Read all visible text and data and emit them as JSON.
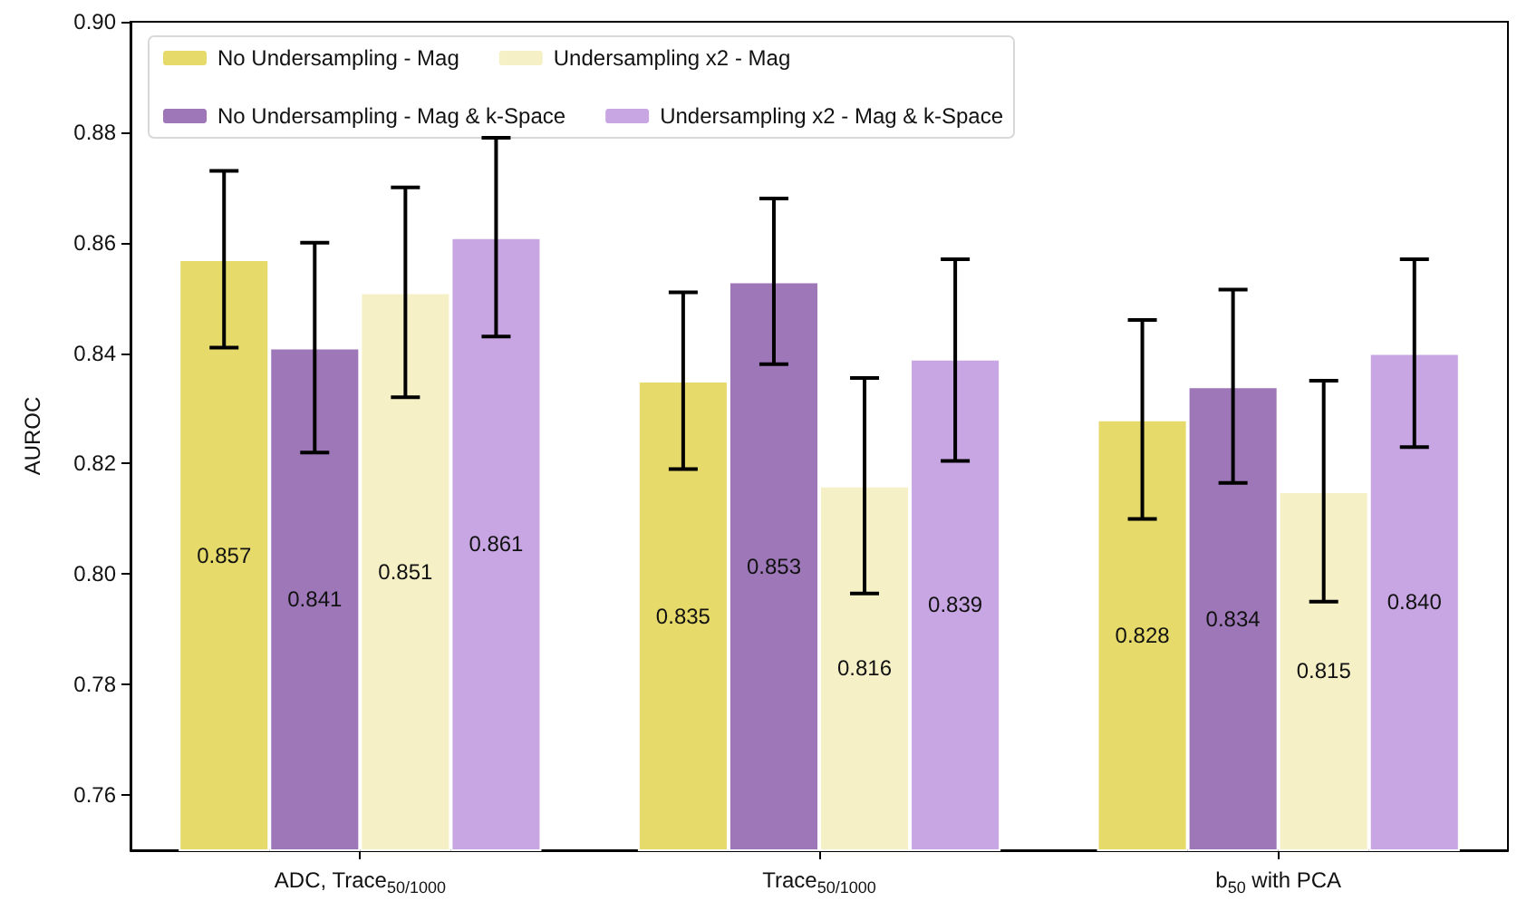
{
  "chart_data": {
    "type": "bar",
    "ylabel": "AUROC",
    "categories": [
      "ADC, Trace$_{50/1000}$",
      "Trace$_{50/1000}$",
      "b$_{50}$ with PCA"
    ],
    "series": [
      {
        "name": "No Undersampling - Mag",
        "color": "#e6da6a",
        "values": [
          0.857,
          0.835,
          0.828
        ],
        "value_labels": [
          "0.857",
          "0.835",
          "0.828"
        ],
        "errors": [
          [
            0.841,
            0.873
          ],
          [
            0.819,
            0.851
          ],
          [
            0.81,
            0.846
          ]
        ]
      },
      {
        "name": "No Undersampling - Mag & k-Space",
        "color": "#9d77b7",
        "values": [
          0.841,
          0.853,
          0.834
        ],
        "value_labels": [
          "0.841",
          "0.853",
          "0.834"
        ],
        "errors": [
          [
            0.822,
            0.86
          ],
          [
            0.838,
            0.868
          ],
          [
            0.8165,
            0.8515
          ]
        ]
      },
      {
        "name": "Undersampling x2 - Mag",
        "color": "#f6f0c6",
        "values": [
          0.851,
          0.816,
          0.815
        ],
        "value_labels": [
          "0.851",
          "0.816",
          "0.815"
        ],
        "errors": [
          [
            0.832,
            0.87
          ],
          [
            0.7965,
            0.8355
          ],
          [
            0.795,
            0.835
          ]
        ]
      },
      {
        "name": "Undersampling x2 - Mag & k-Space",
        "color": "#c8a6e3",
        "values": [
          0.861,
          0.839,
          0.84
        ],
        "value_labels": [
          "0.861",
          "0.839",
          "0.840"
        ],
        "errors": [
          [
            0.843,
            0.879
          ],
          [
            0.8205,
            0.857
          ],
          [
            0.823,
            0.857
          ]
        ]
      }
    ],
    "ylim": [
      0.75,
      0.9
    ],
    "yticks": [
      0.76,
      0.78,
      {
        "value": 0.8,
        "label": "0.80"
      },
      0.82,
      0.84,
      0.86,
      0.88,
      {
        "value": 0.9,
        "label": "0.90"
      }
    ],
    "grid": false,
    "legend": "top left"
  }
}
